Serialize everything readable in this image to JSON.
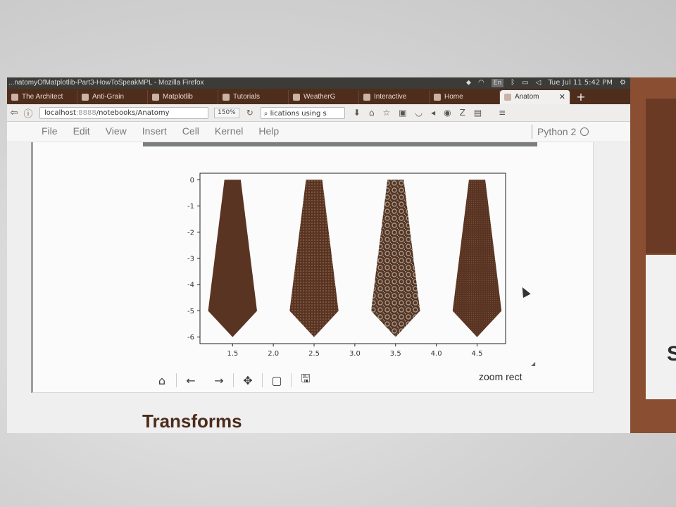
{
  "titlebar": {
    "title": "...natomyOfMatplotlib-Part3-HowToSpeakMPL - Mozilla Firefox",
    "lang": "En",
    "clock": "Tue Jul 11  5:42 PM"
  },
  "tabs": [
    {
      "label": "The Architect"
    },
    {
      "label": "Anti-Grain"
    },
    {
      "label": "Matplotlib"
    },
    {
      "label": "Tutorials"
    },
    {
      "label": "WeatherG"
    },
    {
      "label": "Interactive"
    },
    {
      "label": "Home"
    },
    {
      "label": "Anatom",
      "active": true
    }
  ],
  "navbar": {
    "url_host": "localhost",
    "url_port": ":8888",
    "url_path": "/notebooks/Anatomy",
    "zoom": "150%",
    "search_text": "lications using s"
  },
  "menubar": {
    "items": [
      "File",
      "Edit",
      "View",
      "Insert",
      "Cell",
      "Kernel",
      "Help"
    ],
    "kernel": "Python 2"
  },
  "chart_data": {
    "type": "area",
    "title": "",
    "xlabel": "",
    "ylabel": "",
    "xlim": [
      1.1,
      4.85
    ],
    "ylim": [
      -6.25,
      0.25
    ],
    "xticks": [
      "1.5",
      "2.0",
      "2.5",
      "3.0",
      "3.5",
      "4.0",
      "4.5"
    ],
    "yticks": [
      "0",
      "-1",
      "-2",
      "-3",
      "-4",
      "-5",
      "-6"
    ],
    "grid": false,
    "series": [
      {
        "center": 1.5,
        "patterns": "solid",
        "points": [
          [
            1.4,
            0
          ],
          [
            1.6,
            0
          ],
          [
            1.8,
            -5
          ],
          [
            1.5,
            -6
          ],
          [
            1.2,
            -5
          ]
        ]
      },
      {
        "center": 2.5,
        "patterns": "dots",
        "points": [
          [
            2.4,
            0
          ],
          [
            2.6,
            0
          ],
          [
            2.8,
            -5
          ],
          [
            2.5,
            -6
          ],
          [
            2.2,
            -5
          ]
        ]
      },
      {
        "center": 3.5,
        "patterns": "circles",
        "points": [
          [
            3.4,
            0
          ],
          [
            3.6,
            0
          ],
          [
            3.8,
            -5
          ],
          [
            3.5,
            -6
          ],
          [
            3.2,
            -5
          ]
        ]
      },
      {
        "center": 4.5,
        "patterns": "fine-dots",
        "points": [
          [
            4.4,
            0
          ],
          [
            4.6,
            0
          ],
          [
            4.8,
            -5
          ],
          [
            4.5,
            -6
          ],
          [
            4.2,
            -5
          ]
        ]
      }
    ],
    "color": "#5a3422"
  },
  "plot_toolbar": {
    "icons": [
      "home-icon",
      "back-arrow-icon",
      "forward-arrow-icon",
      "move-icon",
      "zoom-rect-icon",
      "save-icon"
    ],
    "status": "zoom rect"
  },
  "section_heading": "Transforms",
  "side_letter": "S"
}
